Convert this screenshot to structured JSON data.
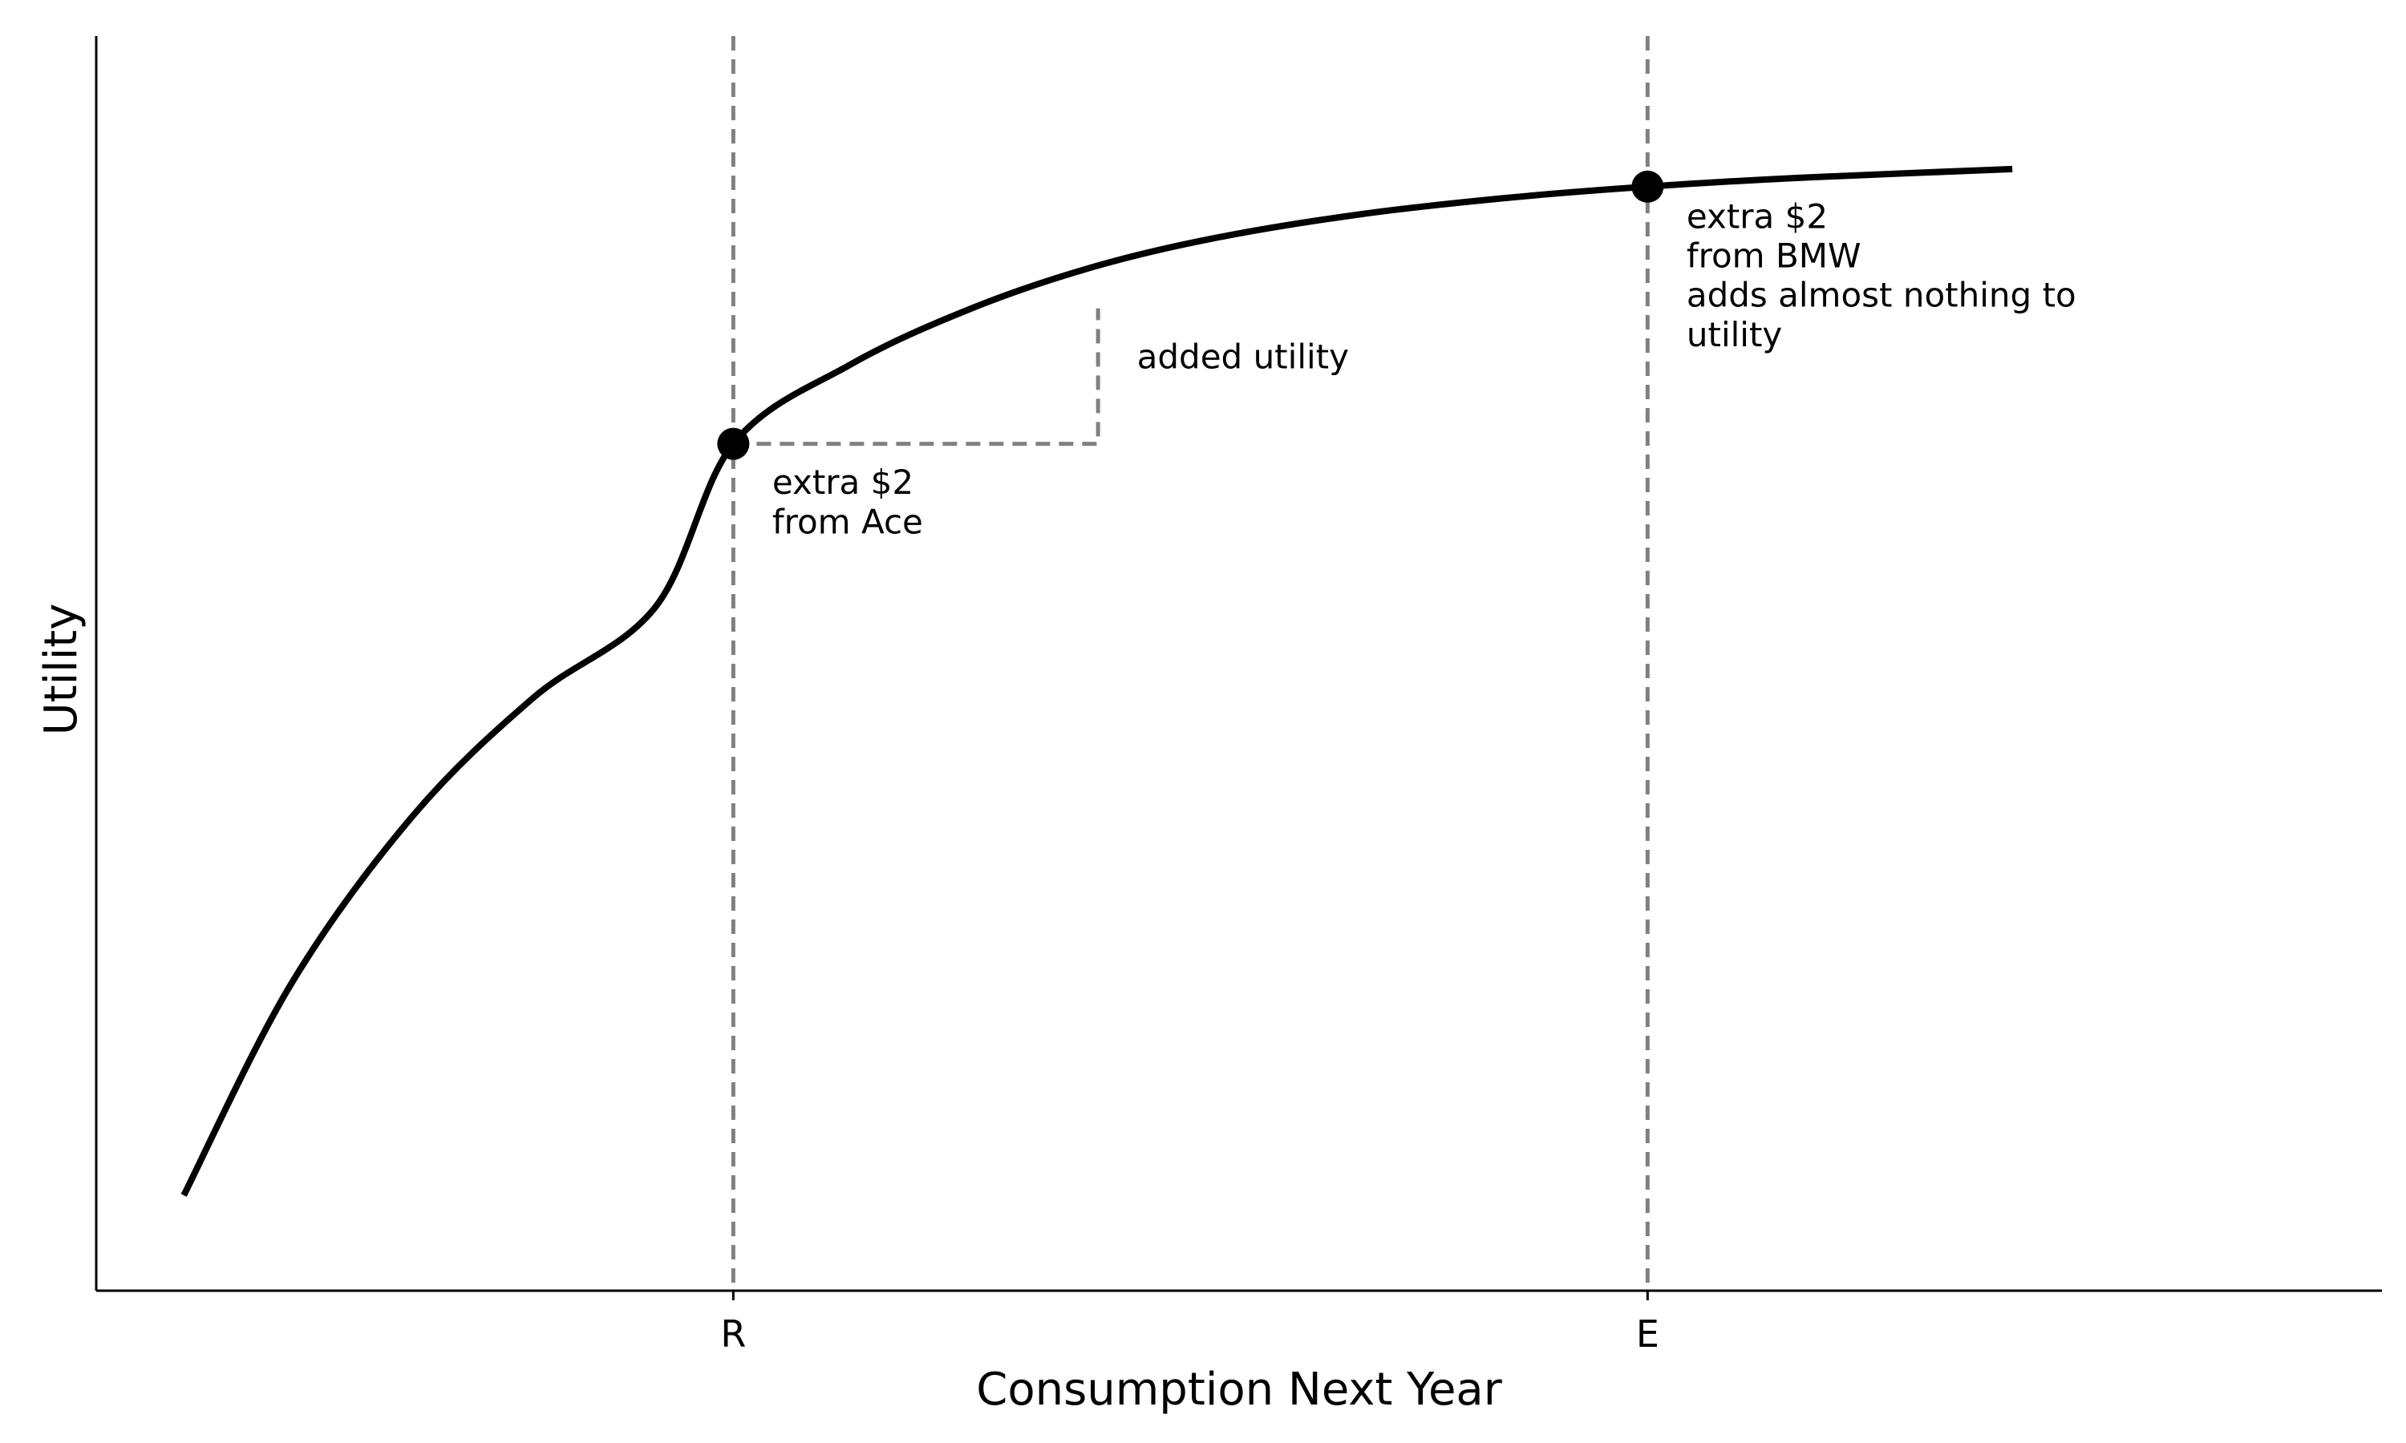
{
  "chart_data": {
    "type": "line",
    "title": "",
    "xlabel": "Consumption Next Year",
    "ylabel": "Utility",
    "xlim": [
      0.3,
      5.0
    ],
    "ylim": [
      0.0,
      1.0
    ],
    "grid": false,
    "series": [
      {
        "x": [
          0.48,
          0.7,
          0.95,
          1.2,
          1.45,
          1.61,
          1.85,
          2.1,
          2.35,
          2.6,
          2.9,
          3.2,
          3.49,
          3.8,
          4.24
        ],
        "y": [
          0.076,
          0.244,
          0.378,
          0.473,
          0.545,
          0.675,
          0.738,
          0.783,
          0.816,
          0.839,
          0.858,
          0.871,
          0.88,
          0.887,
          0.894
        ],
        "color": "#000000",
        "style": "solid"
      }
    ],
    "x_ticks": [
      {
        "x": 1.61,
        "label": "R"
      },
      {
        "x": 3.49,
        "label": "E"
      }
    ],
    "vertical_refs": [
      {
        "x": 1.61,
        "color": "#808080",
        "style": "dashed"
      },
      {
        "x": 3.49,
        "color": "#808080",
        "style": "dashed"
      }
    ],
    "points": [
      {
        "x": 1.61,
        "y": 0.675
      },
      {
        "x": 3.49,
        "y": 0.88
      }
    ],
    "step_guide": {
      "x0": 1.61,
      "y0": 0.675,
      "x1": 2.36,
      "y1": 0.783,
      "color": "#808080",
      "style": "dashed"
    },
    "annotations": [
      {
        "x": 1.69,
        "y": 0.635,
        "lines": [
          "extra $2",
          "from Ace"
        ]
      },
      {
        "x": 2.44,
        "y": 0.735,
        "lines": [
          "added utility"
        ]
      },
      {
        "x": 3.57,
        "y": 0.847,
        "lines": [
          "extra $2",
          "from BMW",
          "adds almost nothing to",
          "utility"
        ]
      }
    ]
  }
}
